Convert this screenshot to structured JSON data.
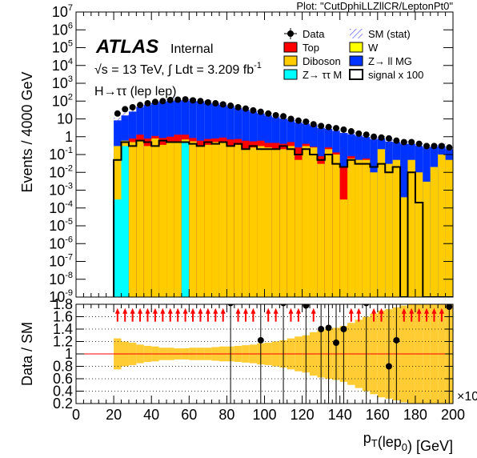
{
  "plot_tag": "Plot: \"CutDphiLLZllCR/LeptonPt0\"",
  "atlas_label": "ATLAS",
  "atlas_status": "Internal",
  "energy_lumi": "√s = 13 TeV, ∫ Ldt = 3.209 fb",
  "energy_lumi_sup": "-1",
  "channel": "H→ττ (lep lep)",
  "x_exponent": "×10",
  "legend": [
    {
      "name": "Data",
      "type": "marker"
    },
    {
      "name": "SM (stat)",
      "type": "hatch",
      "color": "#3a3aff"
    },
    {
      "name": "Top",
      "type": "fill",
      "color": "#ff0000"
    },
    {
      "name": "W",
      "type": "fill",
      "color": "#ffff00"
    },
    {
      "name": "Diboson",
      "type": "fill",
      "color": "#ffcc00"
    },
    {
      "name": "Z→ ll MG",
      "type": "fill",
      "color": "#0033ff"
    },
    {
      "name": "Z→ ττ M",
      "type": "fill",
      "color": "#00ffff"
    },
    {
      "name": "signal x 100",
      "type": "line",
      "color": "#000000"
    }
  ],
  "chart_data": [
    {
      "type": "bar",
      "stacked": true,
      "log_y": true,
      "ylabel": "Events / 4000 GeV",
      "ylim": [
        1e-09,
        10000000.0
      ],
      "xlim": [
        0,
        200
      ],
      "y_ticks": [
        "10^{-9}",
        "10^{-8}",
        "10^{-7}",
        "10^{-6}",
        "10^{-5}",
        "10^{-4}",
        "10^{-3}",
        "10^{-2}",
        "10^{-1}",
        "1",
        "10",
        "10^{2}",
        "10^{3}",
        "10^{4}",
        "10^{5}",
        "10^{6}",
        "10^{7}"
      ],
      "bin_width": 4,
      "bins_low_edge": [
        20,
        24,
        28,
        32,
        36,
        40,
        44,
        48,
        52,
        56,
        60,
        64,
        68,
        72,
        76,
        80,
        84,
        88,
        92,
        96,
        100,
        104,
        108,
        112,
        116,
        120,
        124,
        128,
        132,
        136,
        140,
        144,
        148,
        152,
        156,
        160,
        164,
        168,
        172,
        176,
        180,
        184,
        188,
        192,
        196
      ],
      "series": [
        {
          "name": "Z→ ττ M",
          "values": [
            0.0003,
            0.3,
            0.0,
            0.0,
            0.0,
            0.0,
            0.0,
            0.0,
            0.0,
            0.5,
            0.0,
            0.0,
            0.0,
            0.0,
            0.0,
            0.0,
            0.0,
            0.0,
            0.0,
            0.0,
            0.0,
            0.0,
            0.0,
            0.0,
            0.0,
            0.0,
            0.0,
            0.0,
            0.0,
            0.0,
            0.0,
            0.0,
            0.0,
            0.0,
            0.0,
            0.0,
            0.0,
            0.0,
            0.0,
            0.0,
            0.0,
            0.0,
            0.0,
            0.0,
            0.0
          ]
        },
        {
          "name": "Diboson",
          "values": [
            0.3,
            0.3,
            0.5,
            0.6,
            0.3,
            0.8,
            0.35,
            0.5,
            0.5,
            0.2,
            0.55,
            0.3,
            0.35,
            0.5,
            0.5,
            0.3,
            0.35,
            0.2,
            0.25,
            0.3,
            0.25,
            0.2,
            0.2,
            0.3,
            0.05,
            0.3,
            0.25,
            0.03,
            0.2,
            0.1,
            0.0003,
            0.06,
            0.05,
            0.05,
            0.01,
            0.2,
            0.03,
            0.05,
            0.0004,
            0.05,
            0.01,
            0.003,
            0.02,
            0.1,
            0.05
          ]
        },
        {
          "name": "Top",
          "values": [
            0.0,
            0.0,
            0.3,
            0.7,
            0.5,
            0.3,
            0.5,
            0.5,
            0.8,
            0.6,
            0.3,
            0.3,
            0.4,
            0.3,
            0.4,
            0.4,
            0.4,
            0.4,
            0.3,
            0.3,
            0.2,
            0.25,
            0.2,
            0.2,
            0.2,
            0.1,
            0.02,
            0.05,
            0.05,
            0.03,
            0.02,
            0.02,
            0.0,
            0.01,
            0.0,
            0.0,
            0.0,
            0.0,
            0.0,
            0.0,
            0.0,
            0.0,
            0.0,
            0.0,
            0.0
          ]
        },
        {
          "name": "W",
          "values": [
            0.0,
            0.0,
            0.0,
            0.0,
            0.0,
            0.0,
            0.0,
            0.0,
            0.0,
            0.0,
            0.0,
            0.0,
            0.0,
            0.0,
            0.0,
            0.0,
            0.0,
            0.0,
            0.0,
            0.0,
            0.0,
            0.0,
            0.0,
            0.0,
            0.0,
            0.0,
            0.0,
            0.0,
            0.0,
            0.0,
            0.0,
            0.0,
            0.0,
            0.0,
            0.0,
            0.0,
            0.0,
            0.0,
            0.0,
            0.0,
            0.0,
            0.0,
            0.0,
            0.0,
            0.0
          ]
        },
        {
          "name": "Z→ ll MG",
          "values": [
            8,
            15,
            25,
            45,
            60,
            80,
            90,
            100,
            110,
            110,
            100,
            95,
            80,
            70,
            60,
            50,
            40,
            32,
            25,
            20,
            15,
            12,
            10,
            8,
            6,
            5,
            4,
            3,
            2.5,
            2,
            1.6,
            1.3,
            1.1,
            0.9,
            0.7,
            0.6,
            0.5,
            0.45,
            0.4,
            0.35,
            0.3,
            0.25,
            0.25,
            0.2,
            0.15
          ]
        }
      ],
      "signal_x100": [
        0.05,
        0.5,
        0.3,
        0.6,
        0.5,
        0.3,
        0.6,
        0.5,
        0.5,
        0.5,
        0.4,
        0.3,
        0.5,
        0.4,
        0.5,
        0.3,
        0.4,
        0.2,
        0.3,
        0.2,
        0.2,
        0.2,
        0.3,
        0.2,
        0.1,
        0.2,
        0.1,
        0.05,
        0.1,
        0.03,
        0.02,
        0.05,
        0.03,
        0.03,
        0.02,
        0.03,
        0.01,
        0.02,
        0.0,
        0.01,
        0.0002,
        0.0,
        0.0,
        0.0,
        0.0
      ],
      "data": [
        20,
        35,
        45,
        60,
        75,
        90,
        100,
        115,
        120,
        125,
        110,
        100,
        85,
        75,
        65,
        55,
        45,
        38,
        30,
        25,
        20,
        16,
        14,
        10,
        8,
        7,
        5,
        4,
        3.5,
        3,
        2.5,
        2,
        1.5,
        1.3,
        1,
        0.9,
        0.8,
        0.6,
        0.5,
        0.5,
        0.4,
        0.3,
        0.3,
        0.3,
        0.25
      ]
    },
    {
      "type": "scatter",
      "ylabel": "Data / SM",
      "xlabel": "p_{T}(lep_{0}) [GeV]",
      "xlim": [
        0,
        200
      ],
      "ylim": [
        0.2,
        1.8
      ],
      "y_ticks": [
        "0.2",
        "0.4",
        "0.6",
        "0.8",
        "1",
        "1.2",
        "1.4",
        "1.6",
        "1.8"
      ],
      "x_ticks": [
        "0",
        "20",
        "40",
        "60",
        "80",
        "100",
        "120",
        "140",
        "160",
        "180",
        "200"
      ],
      "ratio_points": [
        {
          "x": 82,
          "y": 1.82
        },
        {
          "x": 98,
          "y": 1.22
        },
        {
          "x": 110,
          "y": 1.82
        },
        {
          "x": 122,
          "y": 1.78
        },
        {
          "x": 130,
          "y": 1.4
        },
        {
          "x": 134,
          "y": 1.42
        },
        {
          "x": 138,
          "y": 1.18
        },
        {
          "x": 142,
          "y": 1.4
        },
        {
          "x": 154,
          "y": 1.82
        },
        {
          "x": 166,
          "y": 0.8
        },
        {
          "x": 170,
          "y": 1.22
        },
        {
          "x": 198,
          "y": 1.76
        }
      ],
      "arrow_x": [
        22,
        26,
        30,
        34,
        38,
        42,
        46,
        50,
        54,
        58,
        62,
        66,
        70,
        74,
        78,
        86,
        90,
        94,
        102,
        106,
        114,
        118,
        126,
        146,
        150,
        158,
        162,
        174,
        178,
        182,
        186,
        190,
        194
      ],
      "band_half_width": [
        0.25,
        0.2,
        0.18,
        0.15,
        0.13,
        0.12,
        0.1,
        0.1,
        0.09,
        0.09,
        0.1,
        0.1,
        0.1,
        0.11,
        0.12,
        0.12,
        0.13,
        0.14,
        0.15,
        0.17,
        0.18,
        0.2,
        0.22,
        0.25,
        0.28,
        0.3,
        0.35,
        0.38,
        0.4,
        0.42,
        0.45,
        0.5,
        0.55,
        0.6,
        0.65,
        0.7,
        0.72,
        0.75,
        0.78,
        0.8,
        0.8,
        0.8,
        0.8,
        0.8,
        0.8
      ]
    }
  ]
}
